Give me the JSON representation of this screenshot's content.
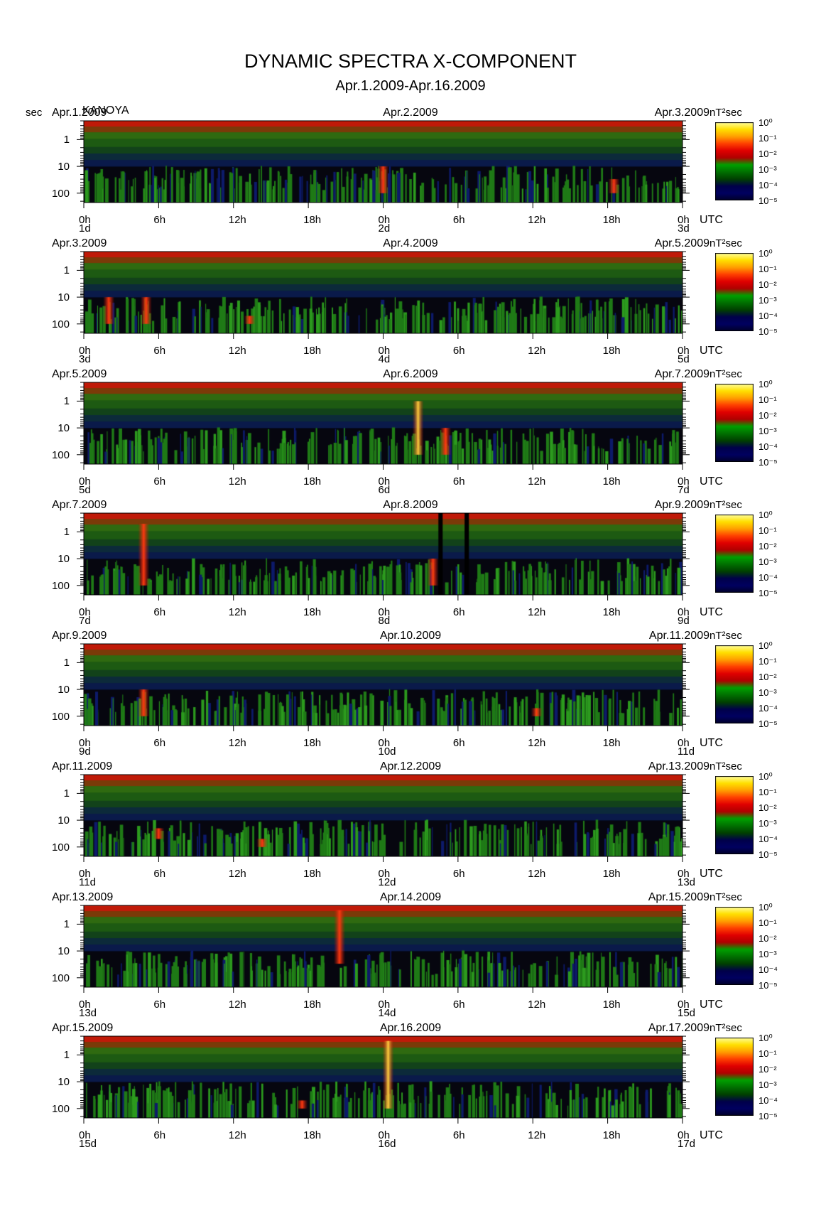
{
  "header": {
    "title": "DYNAMIC SPECTRA X-COMPONENT",
    "subtitle": "Apr.1.2009-Apr.16.2009",
    "y_unit": "sec",
    "station": "KANOYA"
  },
  "colorbar": {
    "unit": "nT²sec",
    "ticks": [
      "10⁰",
      "10⁻¹",
      "10⁻²",
      "10⁻³",
      "10⁻⁴",
      "10⁻⁵"
    ],
    "colors": [
      "#ffffa0",
      "#ffe000",
      "#ffa000",
      "#ff4000",
      "#e00000",
      "#b00000",
      "#00a000",
      "#007000",
      "#004000",
      "#00004a",
      "#000060",
      "#000028"
    ]
  },
  "chart_data": {
    "type": "heatmap",
    "title": "DYNAMIC SPECTRA X-COMPONENT",
    "subtitle": "Apr.1.2009-Apr.16.2009",
    "ylabel": "sec",
    "y_scale": "log",
    "y_ticks": [
      "1",
      "10",
      "100"
    ],
    "x_ticks": [
      "0h",
      "6h",
      "12h",
      "18h",
      "0h",
      "6h",
      "12h",
      "18h",
      "0h"
    ],
    "x_unit": "UTC",
    "colorbar_range": [
      "10⁻⁵",
      "10⁰"
    ],
    "panels": [
      {
        "left_date": "Apr.1.2009",
        "mid_date": "Apr.2.2009",
        "right_date": "Apr.3.2009",
        "day_labels": [
          "1d",
          "2d",
          "3d"
        ],
        "events": [
          {
            "hour": 24,
            "intensity": "high",
            "period_range": [
              10,
              100
            ]
          },
          {
            "hour": 42.5,
            "intensity": "high",
            "period_range": [
              30,
              100
            ]
          }
        ]
      },
      {
        "left_date": "Apr.3.2009",
        "mid_date": "Apr.4.2009",
        "right_date": "Apr.5.2009",
        "day_labels": [
          "3d",
          "4d",
          "5d"
        ],
        "events": [
          {
            "hour": 2,
            "intensity": "high",
            "period_range": [
              10,
              100
            ]
          },
          {
            "hour": 5,
            "intensity": "high",
            "period_range": [
              10,
              100
            ]
          },
          {
            "hour": 13.3,
            "intensity": "high",
            "period_range": [
              50,
              100
            ]
          }
        ]
      },
      {
        "left_date": "Apr.5.2009",
        "mid_date": "Apr.6.2009",
        "right_date": "Apr.7.2009",
        "day_labels": [
          "5d",
          "6d",
          "7d"
        ],
        "events": [
          {
            "hour": 26.8,
            "intensity": "very high",
            "period_range": [
              1,
              100
            ]
          },
          {
            "hour": 29,
            "intensity": "high",
            "period_range": [
              10,
              100
            ]
          }
        ]
      },
      {
        "left_date": "Apr.7.2009",
        "mid_date": "Apr.8.2009",
        "right_date": "Apr.9.2009",
        "day_labels": [
          "7d",
          "8d",
          "9d"
        ],
        "gaps_hours": [
          28.6,
          30.7
        ],
        "events": [
          {
            "hour": 4.8,
            "intensity": "high",
            "period_range": [
              0.5,
              100
            ]
          },
          {
            "hour": 28,
            "intensity": "high",
            "period_range": [
              10,
              100
            ]
          }
        ]
      },
      {
        "left_date": "Apr.9.2009",
        "mid_date": "Apr.10.2009",
        "right_date": "Apr.11.2009",
        "day_labels": [
          "9d",
          "10d",
          "11d"
        ],
        "events": [
          {
            "hour": 4.8,
            "intensity": "high",
            "period_range": [
              10,
              100
            ]
          },
          {
            "hour": 36.3,
            "intensity": "high",
            "period_range": [
              50,
              100
            ]
          }
        ]
      },
      {
        "left_date": "Apr.11.2009",
        "mid_date": "Apr.12.2009",
        "right_date": "Apr.13.2009",
        "day_labels": [
          "11d",
          "12d",
          "13d"
        ],
        "events": [
          {
            "hour": 6,
            "intensity": "high",
            "period_range": [
              20,
              50
            ]
          },
          {
            "hour": 14.3,
            "intensity": "high",
            "period_range": [
              50,
              100
            ]
          }
        ]
      },
      {
        "left_date": "Apr.13.2009",
        "mid_date": "Apr.14.2009",
        "right_date": "Apr.15.2009",
        "day_labels": [
          "13d",
          "14d",
          "15d"
        ],
        "events": [
          {
            "hour": 20.5,
            "intensity": "high",
            "period_range": [
              0.3,
              30
            ]
          }
        ]
      },
      {
        "left_date": "Apr.15.2009",
        "mid_date": "Apr.16.2009",
        "right_date": "Apr.17.2009",
        "day_labels": [
          "15d",
          "16d",
          "17d"
        ],
        "events": [
          {
            "hour": 24.4,
            "intensity": "very high",
            "period_range": [
              0.3,
              100
            ]
          },
          {
            "hour": 17.5,
            "intensity": "high",
            "period_range": [
              50,
              100
            ]
          }
        ]
      }
    ]
  }
}
